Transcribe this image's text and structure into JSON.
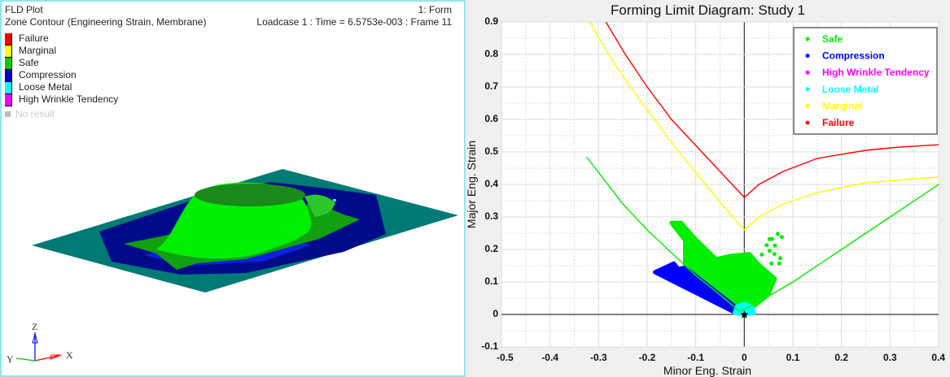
{
  "viewport": {
    "title": "FLD Plot",
    "subtitle": "Zone Contour (Engineering Strain, Membrane)",
    "model_label": "1: Form",
    "loadcase_label": "Loadcase 1 : Time = 6.5753e-003 : Frame 11",
    "legend": [
      {
        "label": "Failure",
        "color": "#ff0000"
      },
      {
        "label": "Marginal",
        "color": "#ffff00"
      },
      {
        "label": "Safe",
        "color": "#00cc00"
      },
      {
        "label": "Compression",
        "color": "#0000cc"
      },
      {
        "label": "Loose Metal",
        "color": "#00ffff"
      },
      {
        "label": "High Wrinkle Tendency",
        "color": "#ff00ff"
      }
    ],
    "no_result_label": "No result",
    "triad": {
      "x": "X",
      "y": "Y",
      "z": "Z"
    }
  },
  "chart_data": {
    "type": "scatter",
    "title": "Forming Limit Diagram: Study 1",
    "xlabel": "Minor Eng. Strain",
    "ylabel": "Major Eng. Strain",
    "xlim": [
      -0.5,
      0.4
    ],
    "ylim": [
      -0.1,
      0.9
    ],
    "xticks": [
      "-0.5",
      "-0.4",
      "-0.3",
      "-0.2",
      "-0.1",
      "0",
      "0.1",
      "0.2",
      "0.3",
      "0.4"
    ],
    "yticks": [
      "-0.1",
      "0",
      "0.1",
      "0.2",
      "0.3",
      "0.4",
      "0.5",
      "0.6",
      "0.7",
      "0.8",
      "0.9"
    ],
    "grid": true,
    "legend_position": "top-right",
    "legend": [
      {
        "label": "Safe",
        "color": "#00ee00"
      },
      {
        "label": "Compression",
        "color": "#0000ff"
      },
      {
        "label": "High Wrinkle Tendency",
        "color": "#ff00ff"
      },
      {
        "label": "Loose Metal",
        "color": "#00ffff"
      },
      {
        "label": "Marginal",
        "color": "#ffff00"
      },
      {
        "label": "Failure",
        "color": "#ff0000"
      }
    ],
    "curves": [
      {
        "name": "Failure",
        "color": "#ff0000",
        "points": [
          [
            -0.285,
            0.9
          ],
          [
            -0.245,
            0.8
          ],
          [
            -0.2,
            0.7
          ],
          [
            -0.15,
            0.6
          ],
          [
            -0.1,
            0.52
          ],
          [
            -0.05,
            0.44
          ],
          [
            0,
            0.36
          ],
          [
            0.03,
            0.4
          ],
          [
            0.08,
            0.44
          ],
          [
            0.15,
            0.48
          ],
          [
            0.25,
            0.505
          ],
          [
            0.32,
            0.515
          ],
          [
            0.4,
            0.522
          ]
        ]
      },
      {
        "name": "Marginal",
        "color": "#ffff00",
        "points": [
          [
            -0.318,
            0.9
          ],
          [
            -0.28,
            0.8
          ],
          [
            -0.235,
            0.7
          ],
          [
            -0.185,
            0.6
          ],
          [
            -0.135,
            0.5
          ],
          [
            -0.08,
            0.4
          ],
          [
            -0.03,
            0.31
          ],
          [
            0,
            0.26
          ],
          [
            0.03,
            0.3
          ],
          [
            0.08,
            0.34
          ],
          [
            0.15,
            0.375
          ],
          [
            0.25,
            0.405
          ],
          [
            0.4,
            0.423
          ]
        ]
      },
      {
        "name": "Safe",
        "color": "#00ee00",
        "points": [
          [
            -0.325,
            0.485
          ],
          [
            -0.25,
            0.34
          ],
          [
            -0.2,
            0.26
          ],
          [
            -0.15,
            0.19
          ],
          [
            -0.1,
            0.12
          ],
          [
            -0.05,
            0.06
          ],
          [
            -0.01,
            0.01
          ],
          [
            0.02,
            0.03
          ],
          [
            0.1,
            0.1
          ],
          [
            0.2,
            0.2
          ],
          [
            0.3,
            0.3
          ],
          [
            0.4,
            0.4
          ]
        ]
      }
    ],
    "point_regions": [
      {
        "name": "Safe",
        "color": "#00ee00",
        "outline": [
          [
            -0.15,
            0.282
          ],
          [
            -0.13,
            0.282
          ],
          [
            -0.103,
            0.236
          ],
          [
            -0.058,
            0.17
          ],
          [
            -0.03,
            0.18
          ],
          [
            0.01,
            0.186
          ],
          [
            0.032,
            0.15
          ],
          [
            0.063,
            0.11
          ],
          [
            0.049,
            0.06
          ],
          [
            0.015,
            0.02
          ],
          [
            0,
            0.0
          ],
          [
            -0.018,
            0.023
          ],
          [
            -0.122,
            0.144
          ],
          [
            -0.122,
            0.228
          ]
        ]
      },
      {
        "name": "Compression",
        "color": "#0000ff",
        "outline": [
          [
            -0.184,
            0.13
          ],
          [
            -0.145,
            0.157
          ],
          [
            -0.136,
            0.14
          ],
          [
            -0.122,
            0.144
          ],
          [
            -0.018,
            0.023
          ],
          [
            -0.005,
            0.003
          ],
          [
            -0.021,
            0.007
          ]
        ]
      },
      {
        "name": "Loose Metal",
        "color": "#00ffff",
        "outline": [
          [
            -0.02,
            0.005
          ],
          [
            -0.015,
            0.025
          ],
          [
            0.0,
            0.032
          ],
          [
            0.015,
            0.025
          ],
          [
            0.02,
            0.005
          ],
          [
            0.0,
            0.0
          ]
        ]
      }
    ],
    "series": [
      {
        "name": "Safe",
        "color": "#00ee00",
        "points": [
          [
            0.057,
            0.232
          ],
          [
            0.069,
            0.248
          ],
          [
            0.077,
            0.238
          ],
          [
            0.063,
            0.212
          ],
          [
            0.052,
            0.196
          ],
          [
            0.046,
            0.213
          ],
          [
            0.062,
            0.186
          ],
          [
            0.074,
            0.173
          ],
          [
            0.072,
            0.157
          ],
          [
            0.056,
            0.157
          ],
          [
            0.036,
            0.184
          ],
          [
            0.052,
            0.232
          ]
        ]
      }
    ],
    "origin_marker": [
      0,
      0
    ]
  }
}
